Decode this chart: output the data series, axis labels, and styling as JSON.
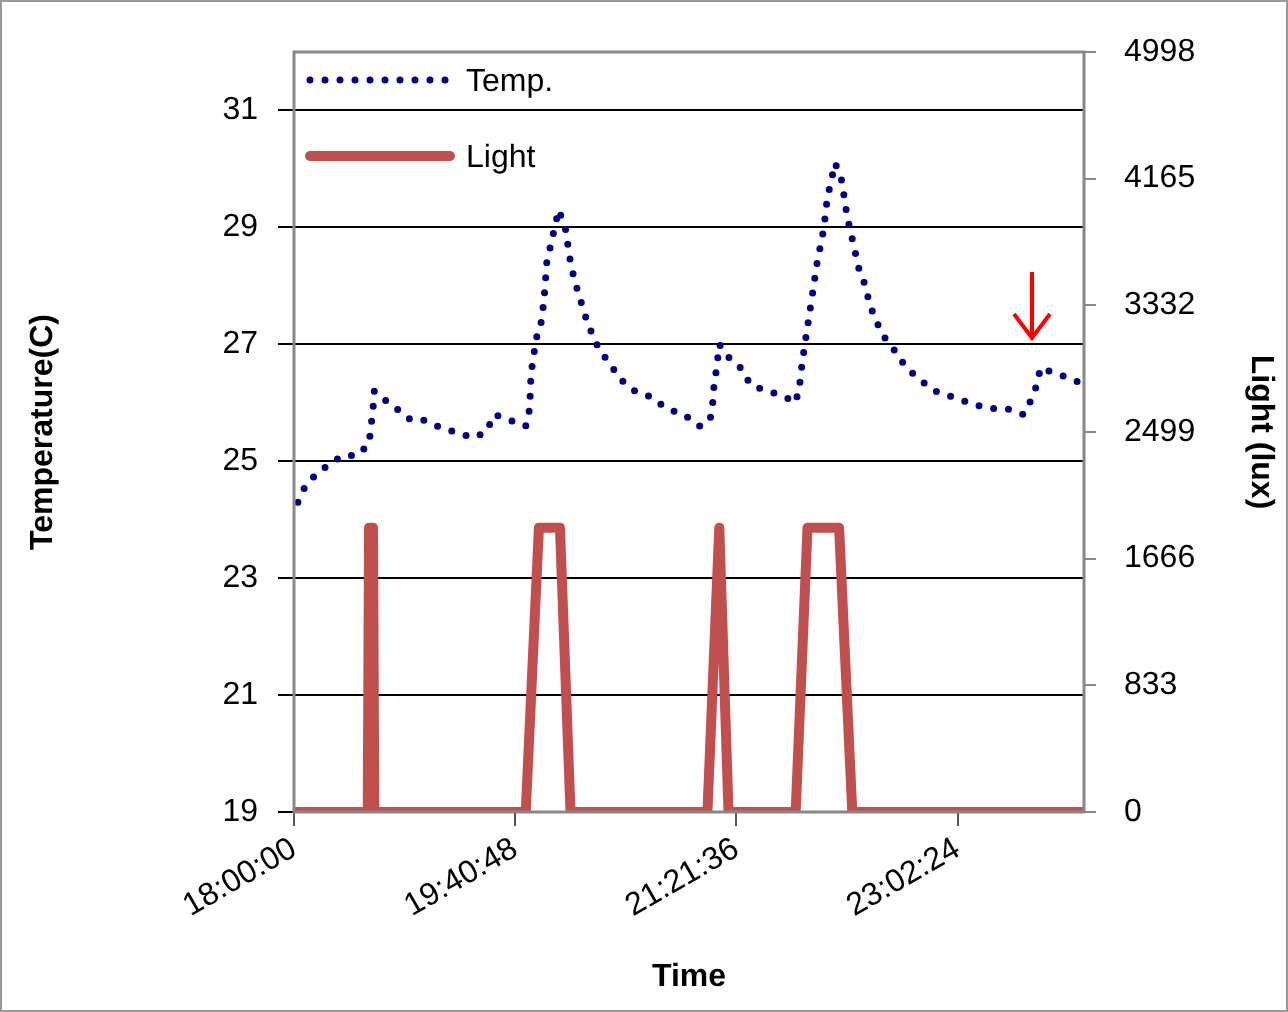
{
  "chart_data": {
    "type": "line",
    "xlabel": "Time",
    "ylabel": "Temperature(C)",
    "y2label": "Light (lux)",
    "xlim": [
      18,
      24
    ],
    "xticks": [
      {
        "value": 18,
        "label": "18:00:00"
      },
      {
        "value": 19.68,
        "label": "19:40:48"
      },
      {
        "value": 21.36,
        "label": "21:21:36"
      },
      {
        "value": 23.04,
        "label": "23:02:24"
      }
    ],
    "ylim": [
      19,
      32
    ],
    "yticks": [
      19,
      21,
      23,
      25,
      27,
      29,
      31
    ],
    "y2lim": [
      0,
      4998
    ],
    "y2ticks": [
      0,
      833,
      1666,
      2499,
      3332,
      4165,
      4998
    ],
    "grid": "y",
    "legend": "top left",
    "marker": "none",
    "series": [
      {
        "name": "Temp.",
        "color": "#000080",
        "line_style": "dotted",
        "x": [
          18.03,
          18.09,
          18.18,
          18.3,
          18.38,
          18.48,
          18.57,
          18.6,
          18.61,
          18.66,
          18.78,
          18.89,
          18.99,
          19.09,
          19.22,
          19.36,
          19.46,
          19.52,
          19.64,
          19.76,
          19.79,
          19.8,
          19.82,
          19.84,
          19.88,
          19.9,
          19.91,
          19.92,
          19.95,
          19.98,
          20.01,
          20.06,
          20.08,
          20.1,
          20.13,
          20.21,
          20.26,
          20.32,
          20.39,
          20.48,
          20.59,
          20.71,
          20.83,
          20.96,
          21.08,
          21.16,
          21.18,
          21.19,
          21.21,
          21.23,
          21.29,
          21.39,
          21.47,
          21.6,
          21.73,
          21.81,
          21.84,
          21.86,
          21.88,
          21.9,
          21.92,
          21.94,
          21.96,
          21.98,
          22.01,
          22.03,
          22.05,
          22.08,
          22.11,
          22.16,
          22.18,
          22.2,
          22.23,
          22.29,
          22.34,
          22.37,
          22.42,
          22.49,
          22.56,
          22.65,
          22.75,
          22.87,
          23,
          23.13,
          23.27,
          23.41,
          23.54,
          23.61,
          23.64,
          23.67,
          23.78,
          23.92,
          24
        ],
        "values": [
          24.3,
          24.6,
          24.8,
          25,
          25.1,
          25.1,
          25.3,
          25.9,
          26.2,
          26.1,
          25.9,
          25.7,
          25.7,
          25.6,
          25.5,
          25.4,
          25.5,
          25.8,
          25.7,
          25.6,
          25.9,
          26.5,
          26.8,
          27.1,
          27.4,
          27.8,
          28.1,
          28.4,
          28.7,
          29,
          29.3,
          29,
          28.7,
          28.4,
          28.1,
          27.5,
          27.2,
          26.9,
          26.7,
          26.4,
          26.2,
          26.1,
          25.9,
          25.8,
          25.6,
          25.7,
          26,
          26.3,
          26.6,
          27,
          26.8,
          26.6,
          26.3,
          26.2,
          26.1,
          26,
          26.3,
          26.7,
          27,
          27.3,
          27.6,
          27.9,
          28.2,
          28.5,
          28.8,
          29.1,
          29.5,
          29.8,
          30.1,
          29.8,
          29.5,
          29.2,
          28.9,
          28.3,
          28,
          27.7,
          27.4,
          27.1,
          26.9,
          26.6,
          26.4,
          26.2,
          26.1,
          26,
          25.9,
          25.9,
          25.8,
          26.1,
          26.3,
          26.6,
          26.5,
          26.4,
          26.3
        ]
      },
      {
        "name": "Light",
        "color": "#c0504d",
        "line_style": "solid",
        "axis": "y2",
        "x": [
          18,
          18.56,
          18.57,
          18.6,
          18.61,
          19.76,
          19.86,
          20.02,
          20.1,
          21.14,
          21.23,
          21.3,
          21.81,
          21.9,
          22.14,
          22.24,
          24
        ],
        "values": [
          0,
          0,
          1870,
          1870,
          0,
          0,
          1870,
          1870,
          0,
          0,
          1870,
          0,
          0,
          1870,
          1870,
          0,
          0
        ]
      }
    ]
  }
}
